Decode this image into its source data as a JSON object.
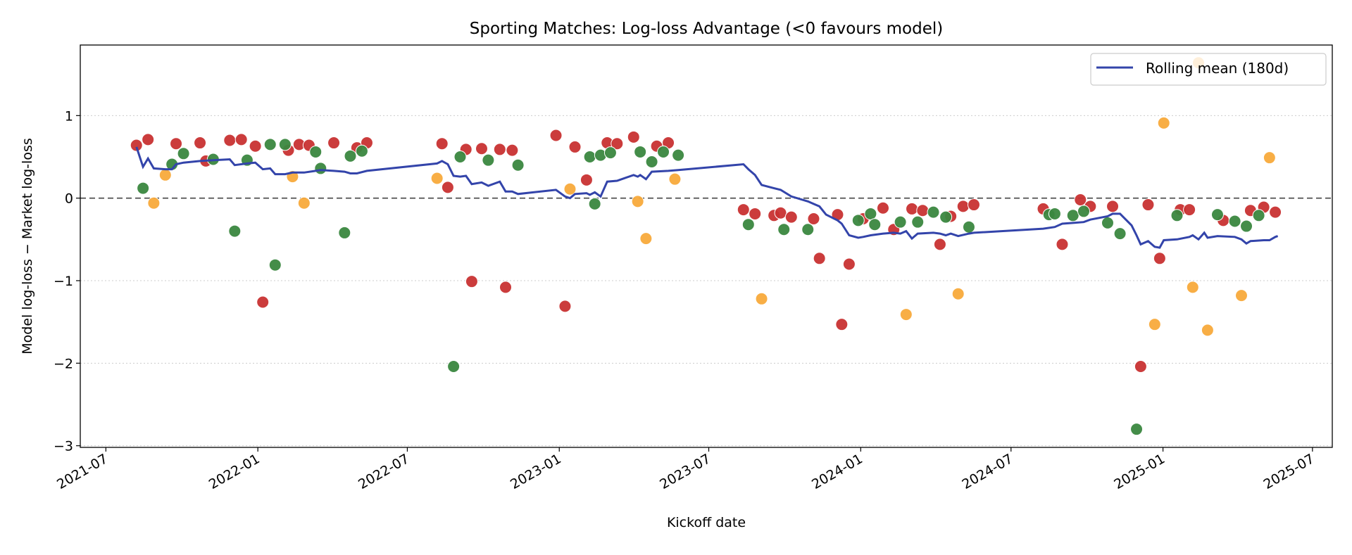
{
  "chart_data": {
    "type": "scatter",
    "title": "Sporting Matches: Log-loss Advantage (<0 favours model)",
    "xlabel": "Kickoff date",
    "ylabel": "Model log-loss − Market log-loss",
    "xlim": [
      "2021-05-31",
      "2025-07-25"
    ],
    "ylim": [
      -3.02,
      1.855
    ],
    "x_ticks": [
      "2021-07",
      "2022-01",
      "2022-07",
      "2023-01",
      "2023-07",
      "2024-01",
      "2024-07",
      "2025-01",
      "2025-07"
    ],
    "y_ticks": [
      -3,
      -2,
      -1,
      0,
      1
    ],
    "y_tick_labels": [
      "−3",
      "−2",
      "−1",
      "0",
      "1"
    ],
    "grid": "horizontal dotted",
    "reference_line": 0,
    "legend_placement": "top-right",
    "point_groups": [
      {
        "color": "#c83232",
        "data": [
          [
            "2021-08-07",
            0.64
          ],
          [
            "2021-08-21",
            0.71
          ],
          [
            "2021-09-24",
            0.66
          ],
          [
            "2021-10-23",
            0.67
          ],
          [
            "2021-10-30",
            0.45
          ],
          [
            "2021-11-28",
            0.7
          ],
          [
            "2021-12-12",
            0.71
          ],
          [
            "2021-12-29",
            0.63
          ],
          [
            "2022-01-07",
            -1.26
          ],
          [
            "2022-02-07",
            0.58
          ],
          [
            "2022-02-20",
            0.65
          ],
          [
            "2022-03-04",
            0.64
          ],
          [
            "2022-04-03",
            0.67
          ],
          [
            "2022-05-01",
            0.61
          ],
          [
            "2022-05-13",
            0.67
          ],
          [
            "2022-08-12",
            0.66
          ],
          [
            "2022-08-19",
            0.13
          ],
          [
            "2022-09-10",
            0.59
          ],
          [
            "2022-09-17",
            -1.01
          ],
          [
            "2022-09-29",
            0.6
          ],
          [
            "2022-10-21",
            0.59
          ],
          [
            "2022-10-28",
            -1.08
          ],
          [
            "2022-11-05",
            0.58
          ],
          [
            "2022-12-28",
            0.76
          ],
          [
            "2023-01-08",
            -1.31
          ],
          [
            "2023-01-20",
            0.62
          ],
          [
            "2023-02-03",
            0.22
          ],
          [
            "2023-02-28",
            0.67
          ],
          [
            "2023-03-12",
            0.66
          ],
          [
            "2023-04-01",
            0.74
          ],
          [
            "2023-04-29",
            0.63
          ],
          [
            "2023-05-13",
            0.67
          ],
          [
            "2023-08-12",
            -0.14
          ],
          [
            "2023-08-26",
            -0.19
          ],
          [
            "2023-09-18",
            -0.21
          ],
          [
            "2023-09-26",
            -0.18
          ],
          [
            "2023-10-09",
            -0.23
          ],
          [
            "2023-11-05",
            -0.25
          ],
          [
            "2023-11-12",
            -0.73
          ],
          [
            "2023-12-04",
            -0.2
          ],
          [
            "2023-12-09",
            -1.53
          ],
          [
            "2023-12-18",
            -0.8
          ],
          [
            "2024-01-04",
            -0.25
          ],
          [
            "2024-01-28",
            -0.12
          ],
          [
            "2024-02-10",
            -0.38
          ],
          [
            "2024-03-03",
            -0.13
          ],
          [
            "2024-03-16",
            -0.15
          ],
          [
            "2024-04-06",
            -0.56
          ],
          [
            "2024-04-19",
            -0.22
          ],
          [
            "2024-05-04",
            -0.1
          ],
          [
            "2024-05-17",
            -0.08
          ],
          [
            "2024-08-09",
            -0.13
          ],
          [
            "2024-09-01",
            -0.56
          ],
          [
            "2024-09-23",
            -0.02
          ],
          [
            "2024-10-05",
            -0.1
          ],
          [
            "2024-11-01",
            -0.1
          ],
          [
            "2024-12-05",
            -2.04
          ],
          [
            "2024-12-14",
            -0.08
          ],
          [
            "2024-12-28",
            -0.73
          ],
          [
            "2025-01-22",
            -0.14
          ],
          [
            "2025-02-02",
            -0.14
          ],
          [
            "2025-03-15",
            -0.27
          ],
          [
            "2025-04-17",
            -0.15
          ],
          [
            "2025-05-03",
            -0.11
          ],
          [
            "2025-05-17",
            -0.17
          ]
        ]
      },
      {
        "color": "#3a873f",
        "data": [
          [
            "2021-08-15",
            0.12
          ],
          [
            "2021-09-19",
            0.41
          ],
          [
            "2021-10-03",
            0.54
          ],
          [
            "2021-11-08",
            0.47
          ],
          [
            "2021-12-04",
            -0.4
          ],
          [
            "2021-12-19",
            0.46
          ],
          [
            "2022-01-16",
            0.65
          ],
          [
            "2022-01-22",
            -0.81
          ],
          [
            "2022-02-03",
            0.65
          ],
          [
            "2022-03-12",
            0.56
          ],
          [
            "2022-03-18",
            0.36
          ],
          [
            "2022-04-16",
            -0.42
          ],
          [
            "2022-04-23",
            0.51
          ],
          [
            "2022-05-07",
            0.57
          ],
          [
            "2022-08-26",
            -2.04
          ],
          [
            "2022-09-03",
            0.5
          ],
          [
            "2022-10-07",
            0.46
          ],
          [
            "2022-11-12",
            0.4
          ],
          [
            "2023-02-07",
            0.5
          ],
          [
            "2023-02-13",
            -0.07
          ],
          [
            "2023-02-20",
            0.52
          ],
          [
            "2023-03-04",
            0.55
          ],
          [
            "2023-04-09",
            0.56
          ],
          [
            "2023-04-23",
            0.44
          ],
          [
            "2023-05-07",
            0.56
          ],
          [
            "2023-05-25",
            0.52
          ],
          [
            "2023-08-18",
            -0.32
          ],
          [
            "2023-09-30",
            -0.38
          ],
          [
            "2023-10-29",
            -0.38
          ],
          [
            "2023-12-29",
            -0.27
          ],
          [
            "2024-01-13",
            -0.19
          ],
          [
            "2024-01-18",
            -0.32
          ],
          [
            "2024-02-18",
            -0.29
          ],
          [
            "2024-03-10",
            -0.29
          ],
          [
            "2024-03-29",
            -0.17
          ],
          [
            "2024-04-13",
            -0.23
          ],
          [
            "2024-05-11",
            -0.35
          ],
          [
            "2024-08-16",
            -0.2
          ],
          [
            "2024-08-23",
            -0.19
          ],
          [
            "2024-09-14",
            -0.21
          ],
          [
            "2024-09-27",
            -0.16
          ],
          [
            "2024-10-26",
            -0.3
          ],
          [
            "2024-11-10",
            -0.43
          ],
          [
            "2024-11-30",
            -2.8
          ],
          [
            "2025-01-18",
            -0.21
          ],
          [
            "2025-03-08",
            -0.2
          ],
          [
            "2025-03-29",
            -0.28
          ],
          [
            "2025-04-12",
            -0.34
          ],
          [
            "2025-04-27",
            -0.21
          ]
        ]
      },
      {
        "color": "#f8aa3b",
        "data": [
          [
            "2021-08-28",
            -0.06
          ],
          [
            "2021-09-11",
            0.28
          ],
          [
            "2022-02-12",
            0.26
          ],
          [
            "2022-02-26",
            -0.06
          ],
          [
            "2022-08-06",
            0.24
          ],
          [
            "2023-01-14",
            0.11
          ],
          [
            "2023-04-06",
            -0.04
          ],
          [
            "2023-04-16",
            -0.49
          ],
          [
            "2023-05-21",
            0.23
          ],
          [
            "2023-09-03",
            -1.22
          ],
          [
            "2024-02-25",
            -1.41
          ],
          [
            "2024-04-28",
            -1.16
          ],
          [
            "2024-12-22",
            -1.53
          ],
          [
            "2025-01-02",
            0.91
          ],
          [
            "2025-02-06",
            -1.08
          ],
          [
            "2025-02-13",
            1.64
          ],
          [
            "2025-02-24",
            -1.6
          ],
          [
            "2025-04-06",
            -1.18
          ],
          [
            "2025-05-10",
            0.49
          ]
        ]
      }
    ],
    "series": [
      {
        "name": "Rolling mean (180d)",
        "color": "#3344aa",
        "type": "line",
        "data": [
          [
            "2021-08-07",
            0.62
          ],
          [
            "2021-08-15",
            0.38
          ],
          [
            "2021-08-21",
            0.48
          ],
          [
            "2021-08-28",
            0.36
          ],
          [
            "2021-09-11",
            0.35
          ],
          [
            "2021-09-19",
            0.35
          ],
          [
            "2021-09-24",
            0.41
          ],
          [
            "2021-10-03",
            0.43
          ],
          [
            "2021-10-23",
            0.45
          ],
          [
            "2021-11-08",
            0.46
          ],
          [
            "2021-11-28",
            0.47
          ],
          [
            "2021-12-04",
            0.4
          ],
          [
            "2021-12-19",
            0.42
          ],
          [
            "2021-12-29",
            0.43
          ],
          [
            "2022-01-07",
            0.35
          ],
          [
            "2022-01-16",
            0.36
          ],
          [
            "2022-01-22",
            0.29
          ],
          [
            "2022-02-03",
            0.29
          ],
          [
            "2022-02-12",
            0.31
          ],
          [
            "2022-02-26",
            0.31
          ],
          [
            "2022-03-12",
            0.33
          ],
          [
            "2022-03-18",
            0.34
          ],
          [
            "2022-04-03",
            0.33
          ],
          [
            "2022-04-16",
            0.32
          ],
          [
            "2022-04-23",
            0.3
          ],
          [
            "2022-05-01",
            0.3
          ],
          [
            "2022-05-13",
            0.33
          ],
          [
            "2022-08-06",
            0.42
          ],
          [
            "2022-08-12",
            0.45
          ],
          [
            "2022-08-19",
            0.41
          ],
          [
            "2022-08-26",
            0.27
          ],
          [
            "2022-09-03",
            0.26
          ],
          [
            "2022-09-10",
            0.27
          ],
          [
            "2022-09-17",
            0.17
          ],
          [
            "2022-09-29",
            0.19
          ],
          [
            "2022-10-07",
            0.15
          ],
          [
            "2022-10-21",
            0.2
          ],
          [
            "2022-10-28",
            0.08
          ],
          [
            "2022-11-05",
            0.08
          ],
          [
            "2022-11-12",
            0.05
          ],
          [
            "2022-12-28",
            0.1
          ],
          [
            "2023-01-08",
            0.02
          ],
          [
            "2023-01-14",
            0.0
          ],
          [
            "2023-01-20",
            0.05
          ],
          [
            "2023-02-03",
            0.06
          ],
          [
            "2023-02-07",
            0.04
          ],
          [
            "2023-02-13",
            0.07
          ],
          [
            "2023-02-20",
            0.02
          ],
          [
            "2023-02-28",
            0.2
          ],
          [
            "2023-03-12",
            0.21
          ],
          [
            "2023-04-01",
            0.28
          ],
          [
            "2023-04-06",
            0.26
          ],
          [
            "2023-04-09",
            0.28
          ],
          [
            "2023-04-16",
            0.23
          ],
          [
            "2023-04-23",
            0.32
          ],
          [
            "2023-05-13",
            0.33
          ],
          [
            "2023-05-25",
            0.34
          ],
          [
            "2023-08-12",
            0.41
          ],
          [
            "2023-08-18",
            0.35
          ],
          [
            "2023-08-26",
            0.28
          ],
          [
            "2023-09-03",
            0.16
          ],
          [
            "2023-09-18",
            0.12
          ],
          [
            "2023-09-26",
            0.1
          ],
          [
            "2023-10-09",
            0.02
          ],
          [
            "2023-10-29",
            -0.04
          ],
          [
            "2023-11-05",
            -0.07
          ],
          [
            "2023-11-12",
            -0.1
          ],
          [
            "2023-11-20",
            -0.2
          ],
          [
            "2023-12-04",
            -0.27
          ],
          [
            "2023-12-09",
            -0.31
          ],
          [
            "2023-12-18",
            -0.45
          ],
          [
            "2023-12-29",
            -0.48
          ],
          [
            "2024-01-04",
            -0.47
          ],
          [
            "2024-01-13",
            -0.45
          ],
          [
            "2024-01-28",
            -0.43
          ],
          [
            "2024-02-10",
            -0.42
          ],
          [
            "2024-02-18",
            -0.43
          ],
          [
            "2024-02-25",
            -0.4
          ],
          [
            "2024-03-03",
            -0.49
          ],
          [
            "2024-03-10",
            -0.43
          ],
          [
            "2024-03-29",
            -0.42
          ],
          [
            "2024-04-06",
            -0.43
          ],
          [
            "2024-04-13",
            -0.45
          ],
          [
            "2024-04-19",
            -0.43
          ],
          [
            "2024-04-28",
            -0.46
          ],
          [
            "2024-05-11",
            -0.43
          ],
          [
            "2024-05-17",
            -0.42
          ],
          [
            "2024-08-09",
            -0.37
          ],
          [
            "2024-08-23",
            -0.35
          ],
          [
            "2024-09-01",
            -0.31
          ],
          [
            "2024-09-14",
            -0.3
          ],
          [
            "2024-09-27",
            -0.29
          ],
          [
            "2024-10-05",
            -0.26
          ],
          [
            "2024-10-26",
            -0.22
          ],
          [
            "2024-11-01",
            -0.19
          ],
          [
            "2024-11-10",
            -0.19
          ],
          [
            "2024-11-24",
            -0.33
          ],
          [
            "2024-11-30",
            -0.45
          ],
          [
            "2024-12-05",
            -0.56
          ],
          [
            "2024-12-14",
            -0.52
          ],
          [
            "2024-12-22",
            -0.59
          ],
          [
            "2024-12-28",
            -0.6
          ],
          [
            "2025-01-02",
            -0.51
          ],
          [
            "2025-01-18",
            -0.5
          ],
          [
            "2025-02-02",
            -0.47
          ],
          [
            "2025-02-06",
            -0.45
          ],
          [
            "2025-02-13",
            -0.5
          ],
          [
            "2025-02-20",
            -0.42
          ],
          [
            "2025-02-24",
            -0.48
          ],
          [
            "2025-03-08",
            -0.46
          ],
          [
            "2025-03-29",
            -0.47
          ],
          [
            "2025-04-06",
            -0.5
          ],
          [
            "2025-04-12",
            -0.55
          ],
          [
            "2025-04-17",
            -0.52
          ],
          [
            "2025-05-03",
            -0.51
          ],
          [
            "2025-05-10",
            -0.51
          ],
          [
            "2025-05-17",
            -0.47
          ],
          [
            "2025-05-20",
            -0.46
          ]
        ]
      }
    ]
  }
}
